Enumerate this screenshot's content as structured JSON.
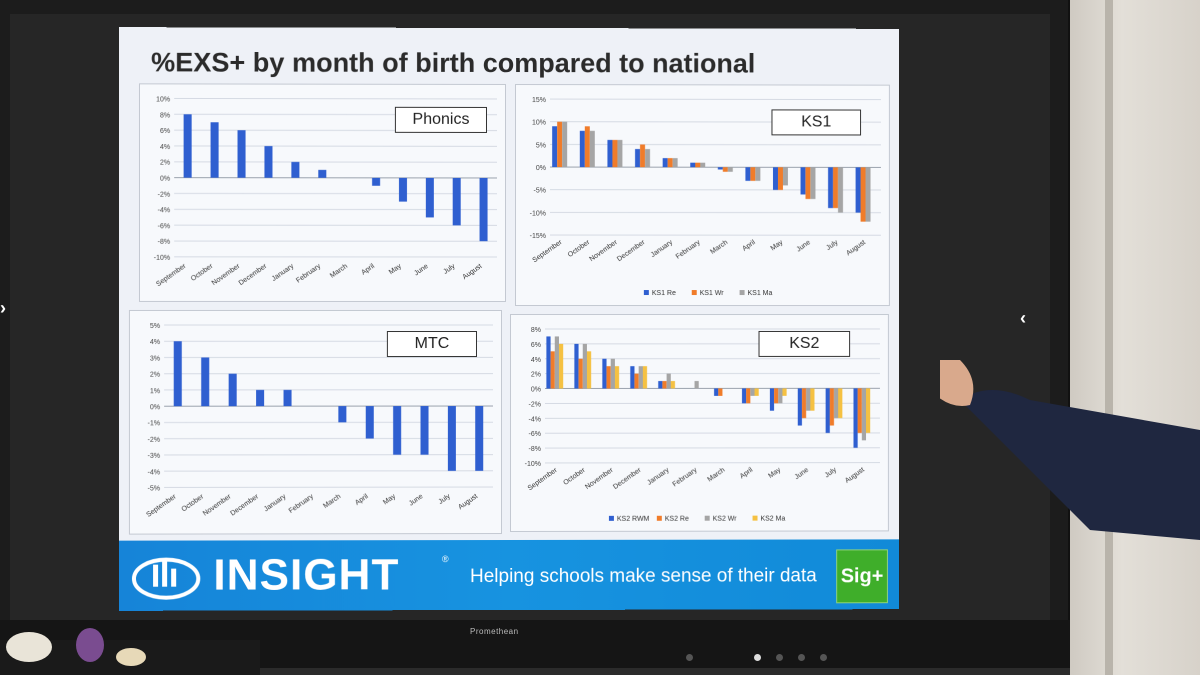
{
  "slide": {
    "title": "%EXS+ by month of birth compared to national",
    "footer": {
      "brand": "INSIGHT",
      "trademark": "®",
      "tagline": "Helping schools make sense of their data",
      "sig_button": "Sig+"
    }
  },
  "monitor": {
    "brand": "Promethean"
  },
  "colors": {
    "re": "#2f5fd0",
    "wr": "#f07c2a",
    "ma": "#a5a5a5",
    "rwm": "#2f5fd0",
    "ks2ma": "#f5c142",
    "footer": "#1684d8",
    "sig": "#3fae2a"
  },
  "chart_data": [
    {
      "type": "bar",
      "label": "Phonics",
      "categories": [
        "September",
        "October",
        "November",
        "December",
        "January",
        "February",
        "March",
        "April",
        "May",
        "June",
        "July",
        "August"
      ],
      "yticks": [
        "10%",
        "8%",
        "6%",
        "4%",
        "2%",
        "0%",
        "-2%",
        "-4%",
        "-6%",
        "-8%",
        "-10%"
      ],
      "ylim": [
        -10,
        10
      ],
      "series": [
        {
          "color": "#2f5fd0",
          "values": [
            8,
            7,
            6,
            4,
            2,
            1,
            0,
            -1,
            -3,
            -5,
            -6,
            -8
          ]
        }
      ]
    },
    {
      "type": "bar",
      "label": "KS1",
      "categories": [
        "September",
        "October",
        "November",
        "December",
        "January",
        "February",
        "March",
        "April",
        "May",
        "June",
        "July",
        "August"
      ],
      "yticks": [
        "15%",
        "10%",
        "5%",
        "0%",
        "-5%",
        "-10%",
        "-15%"
      ],
      "ylim": [
        -15,
        15
      ],
      "series": [
        {
          "name": "KS1 Re",
          "color": "#2f5fd0",
          "values": [
            9,
            8,
            6,
            4,
            2,
            1,
            -0.5,
            -3,
            -5,
            -6,
            -9,
            -10
          ]
        },
        {
          "name": "KS1 Wr",
          "color": "#f07c2a",
          "values": [
            10,
            9,
            6,
            5,
            2,
            1,
            -1,
            -3,
            -5,
            -7,
            -9,
            -12
          ]
        },
        {
          "name": "KS1 Ma",
          "color": "#a5a5a5",
          "values": [
            10,
            8,
            6,
            4,
            2,
            1,
            -1,
            -3,
            -4,
            -7,
            -10,
            -12
          ]
        }
      ]
    },
    {
      "type": "bar",
      "label": "MTC",
      "categories": [
        "September",
        "October",
        "November",
        "December",
        "January",
        "February",
        "March",
        "April",
        "May",
        "June",
        "July",
        "August"
      ],
      "yticks": [
        "5%",
        "4%",
        "3%",
        "2%",
        "1%",
        "0%",
        "-1%",
        "-2%",
        "-3%",
        "-4%",
        "-5%"
      ],
      "ylim": [
        -5,
        5
      ],
      "series": [
        {
          "color": "#2f5fd0",
          "values": [
            4,
            3,
            2,
            1,
            1,
            0,
            -1,
            -2,
            -3,
            -3,
            -4,
            -4
          ]
        }
      ]
    },
    {
      "type": "bar",
      "label": "KS2",
      "categories": [
        "September",
        "October",
        "November",
        "December",
        "January",
        "February",
        "March",
        "April",
        "May",
        "June",
        "July",
        "August"
      ],
      "yticks": [
        "8%",
        "6%",
        "4%",
        "2%",
        "0%",
        "-2%",
        "-4%",
        "-6%",
        "-8%",
        "-10%"
      ],
      "ylim": [
        -10,
        8
      ],
      "series": [
        {
          "name": "KS2 RWM",
          "color": "#2f5fd0",
          "values": [
            7,
            6,
            4,
            3,
            1,
            0,
            -1,
            -2,
            -3,
            -5,
            -6,
            -8
          ]
        },
        {
          "name": "KS2 Re",
          "color": "#f07c2a",
          "values": [
            5,
            4,
            3,
            2,
            1,
            0,
            -1,
            -2,
            -2,
            -4,
            -5,
            -6
          ]
        },
        {
          "name": "KS2 Wr",
          "color": "#a5a5a5",
          "values": [
            7,
            6,
            4,
            3,
            2,
            1,
            0,
            -1,
            -2,
            -3,
            -4,
            -7
          ]
        },
        {
          "name": "KS2 Ma",
          "color": "#f5c142",
          "values": [
            6,
            5,
            3,
            3,
            1,
            0,
            0,
            -1,
            -1,
            -3,
            -4,
            -6
          ]
        }
      ]
    }
  ]
}
